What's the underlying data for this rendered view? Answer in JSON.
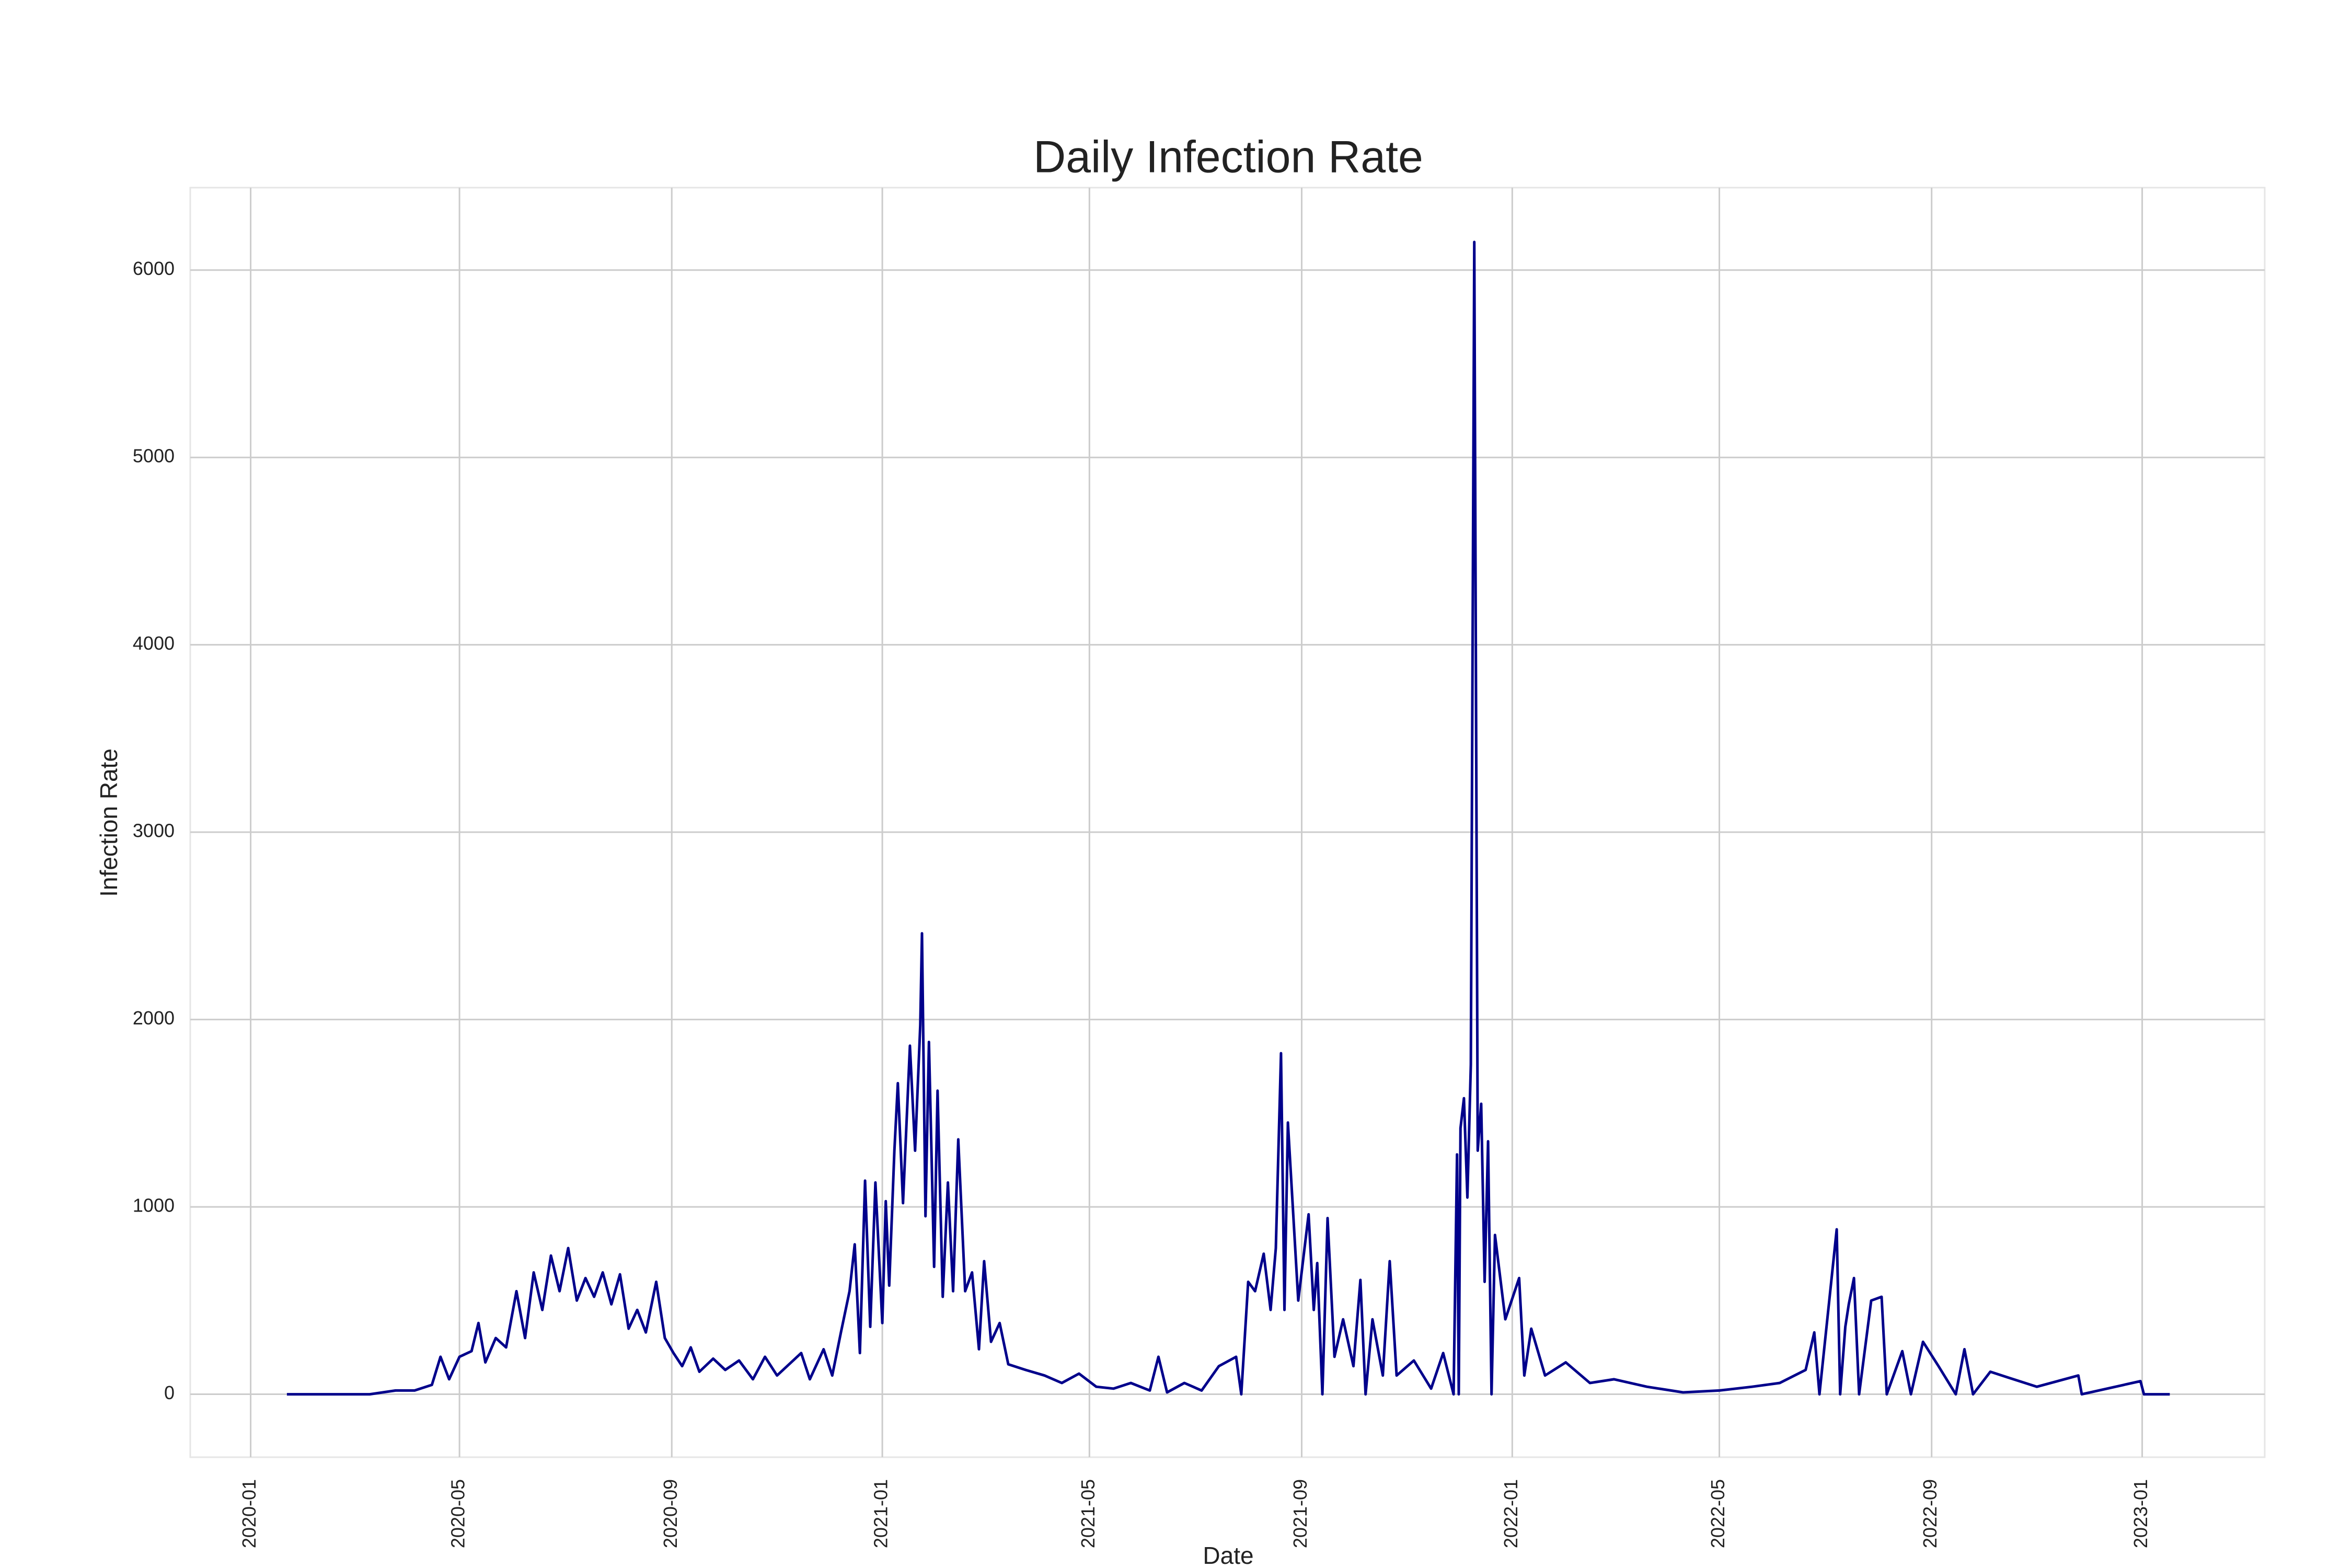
{
  "chart_data": {
    "type": "line",
    "title": "Daily Infection Rate",
    "x_label": "Date",
    "y_label": "Infection Rate",
    "color": "#00008b",
    "grid": true,
    "xlim": [
      "2019-11-27",
      "2023-03-13"
    ],
    "xticks": [
      {
        "value": "2020-01-01",
        "label": "2020-01"
      },
      {
        "value": "2020-05-01",
        "label": "2020-05"
      },
      {
        "value": "2020-09-01",
        "label": "2020-09"
      },
      {
        "value": "2021-01-01",
        "label": "2021-01"
      },
      {
        "value": "2021-05-01",
        "label": "2021-05"
      },
      {
        "value": "2021-09-01",
        "label": "2021-09"
      },
      {
        "value": "2022-01-01",
        "label": "2022-01"
      },
      {
        "value": "2022-05-01",
        "label": "2022-05"
      },
      {
        "value": "2022-09-01",
        "label": "2022-09"
      },
      {
        "value": "2023-01-01",
        "label": "2023-01"
      }
    ],
    "ylim": [
      -336,
      6440
    ],
    "yticks": [
      0,
      1000,
      2000,
      3000,
      4000,
      5000,
      6000
    ],
    "x": [
      "2020-01-22",
      "2020-02-15",
      "2020-03-10",
      "2020-03-25",
      "2020-04-05",
      "2020-04-15",
      "2020-04-20",
      "2020-04-25",
      "2020-05-01",
      "2020-05-08",
      "2020-05-12",
      "2020-05-16",
      "2020-05-22",
      "2020-05-28",
      "2020-06-03",
      "2020-06-08",
      "2020-06-13",
      "2020-06-18",
      "2020-06-23",
      "2020-06-28",
      "2020-07-03",
      "2020-07-08",
      "2020-07-13",
      "2020-07-18",
      "2020-07-23",
      "2020-07-28",
      "2020-08-02",
      "2020-08-07",
      "2020-08-12",
      "2020-08-17",
      "2020-08-23",
      "2020-08-28",
      "2020-09-02",
      "2020-09-07",
      "2020-09-12",
      "2020-09-17",
      "2020-09-25",
      "2020-10-02",
      "2020-10-10",
      "2020-10-18",
      "2020-10-25",
      "2020-11-01",
      "2020-11-08",
      "2020-11-15",
      "2020-11-20",
      "2020-11-28",
      "2020-12-03",
      "2020-12-08",
      "2020-12-13",
      "2020-12-16",
      "2020-12-19",
      "2020-12-22",
      "2020-12-25",
      "2020-12-28",
      "2021-01-01",
      "2021-01-03",
      "2021-01-05",
      "2021-01-08",
      "2021-01-10",
      "2021-01-13",
      "2021-01-17",
      "2021-01-20",
      "2021-01-23",
      "2021-01-24",
      "2021-01-26",
      "2021-01-28",
      "2021-01-31",
      "2021-02-02",
      "2021-02-05",
      "2021-02-08",
      "2021-02-11",
      "2021-02-14",
      "2021-02-18",
      "2021-02-22",
      "2021-02-26",
      "2021-03-01",
      "2021-03-05",
      "2021-03-10",
      "2021-03-15",
      "2021-03-25",
      "2021-04-05",
      "2021-04-15",
      "2021-04-25",
      "2021-05-05",
      "2021-05-15",
      "2021-05-25",
      "2021-06-05",
      "2021-06-10",
      "2021-06-15",
      "2021-06-25",
      "2021-07-05",
      "2021-07-15",
      "2021-07-25",
      "2021-07-28",
      "2021-08-01",
      "2021-08-05",
      "2021-08-10",
      "2021-08-14",
      "2021-08-17",
      "2021-08-20",
      "2021-08-22",
      "2021-08-24",
      "2021-08-30",
      "2021-09-05",
      "2021-09-08",
      "2021-09-10",
      "2021-09-13",
      "2021-09-16",
      "2021-09-20",
      "2021-09-25",
      "2021-10-01",
      "2021-10-05",
      "2021-10-08",
      "2021-10-12",
      "2021-10-18",
      "2021-10-22",
      "2021-10-26",
      "2021-11-05",
      "2021-11-15",
      "2021-11-22",
      "2021-11-28",
      "2021-11-30",
      "2021-12-01",
      "2021-12-02",
      "2021-12-04",
      "2021-12-06",
      "2021-12-08",
      "2021-12-10",
      "2021-12-12",
      "2021-12-14",
      "2021-12-16",
      "2021-12-18",
      "2021-12-20",
      "2021-12-22",
      "2021-12-28",
      "2022-01-05",
      "2022-01-08",
      "2022-01-12",
      "2022-01-20",
      "2022-02-01",
      "2022-02-15",
      "2022-03-01",
      "2022-03-20",
      "2022-04-10",
      "2022-05-01",
      "2022-05-20",
      "2022-06-05",
      "2022-06-20",
      "2022-06-25",
      "2022-06-28",
      "2022-07-08",
      "2022-07-10",
      "2022-07-13",
      "2022-07-15",
      "2022-07-18",
      "2022-07-21",
      "2022-07-28",
      "2022-08-03",
      "2022-08-06",
      "2022-08-15",
      "2022-08-20",
      "2022-08-27",
      "2022-09-05",
      "2022-09-15",
      "2022-09-20",
      "2022-09-25",
      "2022-10-05",
      "2022-10-15",
      "2022-11-01",
      "2022-11-25",
      "2022-11-27",
      "2022-12-31",
      "2023-01-02",
      "2023-01-17"
    ],
    "values": [
      0,
      0,
      0,
      20,
      20,
      50,
      200,
      80,
      200,
      230,
      380,
      170,
      300,
      250,
      550,
      300,
      650,
      450,
      740,
      550,
      780,
      500,
      620,
      520,
      650,
      480,
      640,
      350,
      450,
      330,
      600,
      300,
      220,
      150,
      250,
      120,
      190,
      130,
      180,
      80,
      200,
      100,
      160,
      220,
      80,
      240,
      100,
      330,
      550,
      800,
      220,
      1140,
      360,
      1130,
      380,
      1030,
      580,
      1300,
      1660,
      1020,
      1860,
      1300,
      1970,
      2460,
      950,
      1880,
      680,
      1620,
      520,
      1130,
      550,
      1360,
      550,
      650,
      240,
      710,
      280,
      380,
      160,
      130,
      100,
      60,
      110,
      40,
      30,
      60,
      20,
      200,
      10,
      60,
      20,
      150,
      200,
      0,
      600,
      550,
      750,
      450,
      780,
      1820,
      450,
      1450,
      500,
      960,
      450,
      700,
      0,
      940,
      200,
      400,
      150,
      610,
      0,
      400,
      100,
      710,
      100,
      180,
      30,
      220,
      0,
      1280,
      0,
      1420,
      1580,
      1050,
      1760,
      6150,
      1300,
      1550,
      600,
      1350,
      0,
      850,
      400,
      620,
      100,
      350,
      100,
      170,
      60,
      80,
      40,
      10,
      20,
      40,
      60,
      130,
      330,
      0,
      880,
      0,
      360,
      480,
      620,
      0,
      500,
      520,
      0,
      230,
      0,
      280,
      150,
      0,
      240,
      0,
      120,
      90,
      40,
      100,
      0,
      70,
      0,
      0
    ]
  }
}
